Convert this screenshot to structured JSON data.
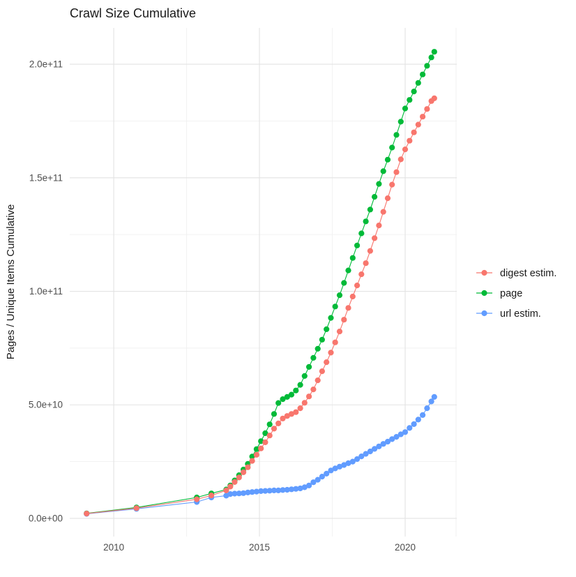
{
  "title": "Crawl Size Cumulative",
  "y_axis_title": "Pages / Unique Items Cumulative",
  "legend": {
    "items": [
      {
        "label": "digest estim.",
        "color": "#F8766D"
      },
      {
        "label": "page",
        "color": "#00BA38"
      },
      {
        "label": "url estim.",
        "color": "#619CFF"
      }
    ]
  },
  "chart_data": {
    "type": "scatter",
    "title": "Crawl Size Cumulative",
    "xlabel": "",
    "ylabel": "Pages / Unique Items Cumulative",
    "grid": true,
    "legend_position": "right",
    "xlim": [
      2008.49,
      2021.77
    ],
    "ylim": [
      -8000000000.0,
      216000000000.0
    ],
    "x_ticks": [
      2010,
      2015,
      2020
    ],
    "x_tick_labels": [
      "2010",
      "2015",
      "2020"
    ],
    "x_minor_ticks": [
      2012.5,
      2017.5
    ],
    "y_ticks": [
      0,
      50000000000.0,
      100000000000.0,
      150000000000.0,
      200000000000.0
    ],
    "y_tick_labels": [
      "0.0e+00",
      "5.0e+10",
      "1.0e+11",
      "1.5e+11",
      "2.0e+11"
    ],
    "y_minor_ticks": [
      25000000000.0,
      75000000000.0,
      125000000000.0,
      175000000000.0
    ],
    "series": [
      {
        "name": "page",
        "color": "#00BA38",
        "points": [
          [
            2009.07,
            2200000000.0
          ],
          [
            2010.78,
            4800000000.0
          ],
          [
            2012.85,
            9200000000.0
          ],
          [
            2013.35,
            11000000000.0
          ],
          [
            2013.86,
            12700000000.0
          ],
          [
            2014.0,
            14500000000.0
          ],
          [
            2014.15,
            16700000000.0
          ],
          [
            2014.3,
            19000000000.0
          ],
          [
            2014.45,
            21500000000.0
          ],
          [
            2014.6,
            24000000000.0
          ],
          [
            2014.75,
            27200000000.0
          ],
          [
            2014.9,
            30500000000.0
          ],
          [
            2015.05,
            34000000000.0
          ],
          [
            2015.2,
            37500000000.0
          ],
          [
            2015.35,
            41400000000.0
          ],
          [
            2015.5,
            46000000000.0
          ],
          [
            2015.65,
            50800000000.0
          ],
          [
            2015.8,
            52500000000.0
          ],
          [
            2015.95,
            53500000000.0
          ],
          [
            2016.1,
            54500000000.0
          ],
          [
            2016.25,
            56300000000.0
          ],
          [
            2016.4,
            58800000000.0
          ],
          [
            2016.55,
            62700000000.0
          ],
          [
            2016.7,
            66700000000.0
          ],
          [
            2016.85,
            70700000000.0
          ],
          [
            2017.0,
            74700000000.0
          ],
          [
            2017.15,
            78700000000.0
          ],
          [
            2017.3,
            83300000000.0
          ],
          [
            2017.45,
            88300000000.0
          ],
          [
            2017.6,
            93300000000.0
          ],
          [
            2017.75,
            98300000000.0
          ],
          [
            2017.9,
            103700000000.0
          ],
          [
            2018.05,
            109200000000.0
          ],
          [
            2018.2,
            114700000000.0
          ],
          [
            2018.35,
            120200000000.0
          ],
          [
            2018.5,
            125500000000.0
          ],
          [
            2018.65,
            130800000000.0
          ],
          [
            2018.8,
            136000000000.0
          ],
          [
            2018.95,
            141600000000.0
          ],
          [
            2019.1,
            147300000000.0
          ],
          [
            2019.25,
            152900000000.0
          ],
          [
            2019.4,
            158000000000.0
          ],
          [
            2019.55,
            163300000000.0
          ],
          [
            2019.7,
            168900000000.0
          ],
          [
            2019.85,
            174700000000.0
          ],
          [
            2020.0,
            180500000000.0
          ],
          [
            2020.15,
            184300000000.0
          ],
          [
            2020.3,
            188000000000.0
          ],
          [
            2020.45,
            191800000000.0
          ],
          [
            2020.6,
            195500000000.0
          ],
          [
            2020.75,
            199300000000.0
          ],
          [
            2020.9,
            203000000000.0
          ],
          [
            2021.0,
            205500000000.0
          ]
        ]
      },
      {
        "name": "url estim.",
        "color": "#619CFF",
        "points": [
          [
            2009.07,
            2000000000.0
          ],
          [
            2010.78,
            4200000000.0
          ],
          [
            2012.85,
            7200000000.0
          ],
          [
            2013.35,
            9200000000.0
          ],
          [
            2013.86,
            10000000000.0
          ],
          [
            2014.0,
            10700000000.0
          ],
          [
            2014.15,
            10900000000.0
          ],
          [
            2014.3,
            11000000000.0
          ],
          [
            2014.45,
            11100000000.0
          ],
          [
            2014.6,
            11400000000.0
          ],
          [
            2014.75,
            11600000000.0
          ],
          [
            2014.9,
            11800000000.0
          ],
          [
            2015.05,
            12000000000.0
          ],
          [
            2015.2,
            12100000000.0
          ],
          [
            2015.35,
            12200000000.0
          ],
          [
            2015.5,
            12300000000.0
          ],
          [
            2015.65,
            12300000000.0
          ],
          [
            2015.8,
            12500000000.0
          ],
          [
            2015.95,
            12600000000.0
          ],
          [
            2016.1,
            12800000000.0
          ],
          [
            2016.25,
            13000000000.0
          ],
          [
            2016.4,
            13200000000.0
          ],
          [
            2016.55,
            13700000000.0
          ],
          [
            2016.7,
            14500000000.0
          ],
          [
            2016.85,
            15900000000.0
          ],
          [
            2017.0,
            17000000000.0
          ],
          [
            2017.15,
            18400000000.0
          ],
          [
            2017.3,
            19700000000.0
          ],
          [
            2017.45,
            21100000000.0
          ],
          [
            2017.6,
            22000000000.0
          ],
          [
            2017.75,
            22800000000.0
          ],
          [
            2017.9,
            23500000000.0
          ],
          [
            2018.05,
            24300000000.0
          ],
          [
            2018.2,
            25000000000.0
          ],
          [
            2018.35,
            26100000000.0
          ],
          [
            2018.5,
            27300000000.0
          ],
          [
            2018.65,
            28400000000.0
          ],
          [
            2018.8,
            29500000000.0
          ],
          [
            2018.95,
            30600000000.0
          ],
          [
            2019.1,
            31700000000.0
          ],
          [
            2019.25,
            32800000000.0
          ],
          [
            2019.4,
            33800000000.0
          ],
          [
            2019.55,
            34900000000.0
          ],
          [
            2019.7,
            35900000000.0
          ],
          [
            2019.85,
            37000000000.0
          ],
          [
            2020.0,
            38000000000.0
          ],
          [
            2020.15,
            39800000000.0
          ],
          [
            2020.3,
            41500000000.0
          ],
          [
            2020.45,
            43500000000.0
          ],
          [
            2020.6,
            45500000000.0
          ],
          [
            2020.75,
            48500000000.0
          ],
          [
            2020.9,
            51500000000.0
          ],
          [
            2021.0,
            53500000000.0
          ]
        ]
      },
      {
        "name": "digest estim.",
        "color": "#F8766D",
        "points": [
          [
            2009.07,
            2100000000.0
          ],
          [
            2010.78,
            4500000000.0
          ],
          [
            2012.85,
            8400000000.0
          ],
          [
            2013.35,
            10100000000.0
          ],
          [
            2013.86,
            12300000000.0
          ],
          [
            2014.0,
            14000000000.0
          ],
          [
            2014.15,
            16000000000.0
          ],
          [
            2014.3,
            18000000000.0
          ],
          [
            2014.45,
            20300000000.0
          ],
          [
            2014.6,
            22500000000.0
          ],
          [
            2014.75,
            25300000000.0
          ],
          [
            2014.9,
            28000000000.0
          ],
          [
            2015.05,
            30800000000.0
          ],
          [
            2015.2,
            33500000000.0
          ],
          [
            2015.35,
            36500000000.0
          ],
          [
            2015.5,
            39500000000.0
          ],
          [
            2015.65,
            41800000000.0
          ],
          [
            2015.8,
            44000000000.0
          ],
          [
            2015.95,
            45100000000.0
          ],
          [
            2016.1,
            46000000000.0
          ],
          [
            2016.25,
            46800000000.0
          ],
          [
            2016.4,
            48500000000.0
          ],
          [
            2016.55,
            50900000000.0
          ],
          [
            2016.7,
            53700000000.0
          ],
          [
            2016.85,
            56800000000.0
          ],
          [
            2017.0,
            60800000000.0
          ],
          [
            2017.15,
            64800000000.0
          ],
          [
            2017.3,
            68800000000.0
          ],
          [
            2017.45,
            73000000000.0
          ],
          [
            2017.6,
            77500000000.0
          ],
          [
            2017.75,
            82300000000.0
          ],
          [
            2017.9,
            87500000000.0
          ],
          [
            2018.05,
            92700000000.0
          ],
          [
            2018.2,
            97700000000.0
          ],
          [
            2018.35,
            102600000000.0
          ],
          [
            2018.5,
            107500000000.0
          ],
          [
            2018.65,
            112400000000.0
          ],
          [
            2018.8,
            117800000000.0
          ],
          [
            2018.95,
            123400000000.0
          ],
          [
            2019.1,
            129000000000.0
          ],
          [
            2019.25,
            135000000000.0
          ],
          [
            2019.4,
            141000000000.0
          ],
          [
            2019.55,
            147000000000.0
          ],
          [
            2019.7,
            152500000000.0
          ],
          [
            2019.85,
            158100000000.0
          ],
          [
            2020.0,
            162500000000.0
          ],
          [
            2020.15,
            166300000000.0
          ],
          [
            2020.3,
            170000000000.0
          ],
          [
            2020.45,
            173400000000.0
          ],
          [
            2020.6,
            176900000000.0
          ],
          [
            2020.75,
            180300000000.0
          ],
          [
            2020.9,
            183800000000.0
          ],
          [
            2021.0,
            185000000000.0
          ]
        ]
      }
    ]
  },
  "style": {
    "grid_major_color": "#e3e3e3",
    "grid_minor_color": "#f0f0f0",
    "tick_text_color": "#4d4d4d",
    "title_text_color": "#1a1a1a",
    "background": "#ffffff"
  }
}
